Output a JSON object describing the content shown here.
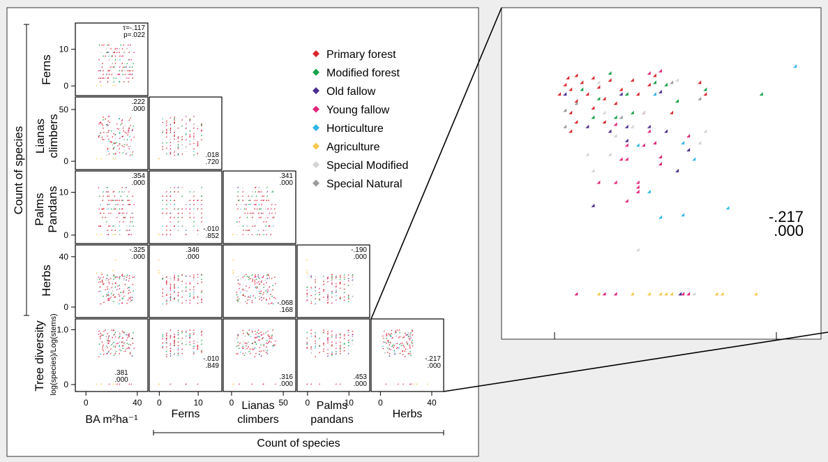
{
  "colors": {
    "Primary forest": "#d7262b",
    "Modified forest": "#16a046",
    "Old fallow": "#4b2e8f",
    "Young fallow": "#e0287a",
    "Horticulture": "#2fb6e8",
    "Agriculture": "#f6c84a",
    "Special Modified": "#d4d4d4",
    "Special Natural": "#9b9b9b"
  },
  "chart_data": {
    "type": "scatter",
    "subtype": "scatterplot matrix (lower triangle) with zoomed inset",
    "legend": [
      "Primary forest",
      "Modified forest",
      "Old fallow",
      "Young fallow",
      "Horticulture",
      "Agriculture",
      "Special Modified",
      "Special Natural"
    ],
    "variables": [
      {
        "key": "ba",
        "label": "BA m²ha⁻¹",
        "range": [
          0,
          45
        ],
        "ticks": [
          0,
          40
        ]
      },
      {
        "key": "ferns",
        "label": "Ferns",
        "range": [
          0,
          15
        ],
        "ticks": [
          0,
          10
        ]
      },
      {
        "key": "lianas",
        "label": "Lianas climbers",
        "range": [
          0,
          55
        ],
        "ticks": [
          0,
          50
        ]
      },
      {
        "key": "palms",
        "label": "Palms Pandans",
        "range": [
          0,
          14
        ],
        "ticks": [
          0,
          10
        ]
      },
      {
        "key": "herbs",
        "label": "Herbs",
        "range": [
          0,
          45
        ],
        "ticks": [
          0,
          40
        ]
      },
      {
        "key": "tree_div",
        "label": "Tree diversity",
        "label_sub": "log(species)/Log(stems)",
        "range": [
          0,
          1.1
        ],
        "ticks": [
          0,
          1.0
        ]
      }
    ],
    "tick_text": {
      "ferns": [
        "0",
        "10"
      ],
      "lianas": [
        "0",
        "50"
      ],
      "palms": [
        "0",
        "10"
      ],
      "herbs": [
        "0",
        "40"
      ],
      "tree_div": [
        "0",
        "1.0"
      ],
      "bottom": [
        "0",
        "40",
        "0",
        "10",
        "0",
        "50",
        "0",
        "10",
        "0",
        "40"
      ]
    },
    "correlations": [
      {
        "row": "ferns",
        "col": "ba",
        "text": [
          "τ=-.117",
          "p=.022"
        ],
        "corner": "top-right"
      },
      {
        "row": "lianas",
        "col": "ba",
        "text": [
          ".222",
          ".000"
        ],
        "corner": "top-right"
      },
      {
        "row": "lianas",
        "col": "ferns",
        "text": [
          ".018",
          ".720"
        ],
        "corner": "bottom-right"
      },
      {
        "row": "palms",
        "col": "ba",
        "text": [
          ".354",
          ".000"
        ],
        "corner": "top-right"
      },
      {
        "row": "palms",
        "col": "ferns",
        "text": [
          "-.010",
          ".852"
        ],
        "corner": "bottom-right"
      },
      {
        "row": "palms",
        "col": "lianas",
        "text": [
          ".341",
          ".000"
        ],
        "corner": "top-right"
      },
      {
        "row": "herbs",
        "col": "ba",
        "text": [
          "-.325",
          ".000"
        ],
        "corner": "top-right"
      },
      {
        "row": "herbs",
        "col": "ferns",
        "text": [
          ".346",
          ".000"
        ],
        "corner": "top-center"
      },
      {
        "row": "herbs",
        "col": "lianas",
        "text": [
          "-.068",
          ".168"
        ],
        "corner": "bottom-right"
      },
      {
        "row": "herbs",
        "col": "palms",
        "text": [
          "-.190",
          ".000"
        ],
        "corner": "top-right"
      },
      {
        "row": "tree_div",
        "col": "ba",
        "text": [
          ".381",
          ".000"
        ],
        "corner": "bottom-center"
      },
      {
        "row": "tree_div",
        "col": "ferns",
        "text": [
          "-.010",
          ".849"
        ],
        "corner": "mid-right"
      },
      {
        "row": "tree_div",
        "col": "lianas",
        "text": [
          ".316",
          ".000"
        ],
        "corner": "bottom-right"
      },
      {
        "row": "tree_div",
        "col": "palms",
        "text": [
          ".453",
          ".000"
        ],
        "corner": "bottom-right"
      },
      {
        "row": "tree_div",
        "col": "herbs",
        "text": [
          "-.217",
          ".000"
        ],
        "corner": "mid-right"
      }
    ],
    "group_axis_label_left": "Count of species",
    "group_axis_label_bottom": "Count of species",
    "bottom_labels": {
      "ba": "BA m²ha⁻¹",
      "ferns": "Ferns",
      "lianas": [
        "Lianas",
        "climbers"
      ],
      "palms": [
        "Palms",
        "pandans"
      ],
      "herbs": "Herbs"
    },
    "left_labels": {
      "ferns": "Ferns",
      "lianas": [
        "Lianas",
        "climbers"
      ],
      "palms": [
        "Palms",
        "Pandans"
      ],
      "herbs": "Herbs",
      "tree_div": [
        "Tree diversity",
        "log(species)/Log(stems)"
      ]
    },
    "inset": {
      "of": {
        "row": "tree_div",
        "col": "herbs"
      },
      "text": [
        "-.217",
        ".000"
      ],
      "points": [
        {
          "g": "Horticulture",
          "x": 45,
          "y": 1.0
        },
        {
          "g": "Primary forest",
          "x": 3,
          "y": 0.88
        },
        {
          "g": "Primary forest",
          "x": 4,
          "y": 0.92
        },
        {
          "g": "Primary forest",
          "x": 4.5,
          "y": 0.95
        },
        {
          "g": "Primary forest",
          "x": 5,
          "y": 0.9
        },
        {
          "g": "Primary forest",
          "x": 6,
          "y": 0.96
        },
        {
          "g": "Primary forest",
          "x": 7,
          "y": 0.93
        },
        {
          "g": "Primary forest",
          "x": 8,
          "y": 0.88
        },
        {
          "g": "Primary forest",
          "x": 9,
          "y": 0.95
        },
        {
          "g": "Primary forest",
          "x": 10,
          "y": 0.91
        },
        {
          "g": "Primary forest",
          "x": 11,
          "y": 0.86
        },
        {
          "g": "Primary forest",
          "x": 12,
          "y": 0.94
        },
        {
          "g": "Primary forest",
          "x": 14,
          "y": 0.9
        },
        {
          "g": "Primary forest",
          "x": 16,
          "y": 0.94
        },
        {
          "g": "Primary forest",
          "x": 17,
          "y": 0.88
        },
        {
          "g": "Primary forest",
          "x": 19,
          "y": 0.92
        },
        {
          "g": "Primary forest",
          "x": 20,
          "y": 0.96
        },
        {
          "g": "Primary forest",
          "x": 5,
          "y": 0.8
        },
        {
          "g": "Primary forest",
          "x": 6,
          "y": 0.76
        },
        {
          "g": "Primary forest",
          "x": 5,
          "y": 0.72
        },
        {
          "g": "Primary forest",
          "x": 9,
          "y": 0.82
        },
        {
          "g": "Primary forest",
          "x": 13,
          "y": 0.84
        },
        {
          "g": "Primary forest",
          "x": 18,
          "y": 0.8
        },
        {
          "g": "Primary forest",
          "x": 28,
          "y": 0.93
        },
        {
          "g": "Primary forest",
          "x": 29,
          "y": 0.88
        },
        {
          "g": "Primary forest",
          "x": 23,
          "y": 0.8
        },
        {
          "g": "Primary forest",
          "x": 11,
          "y": 0.76
        },
        {
          "g": "Primary forest",
          "x": 6,
          "y": 0.85
        },
        {
          "g": "Modified forest",
          "x": 7,
          "y": 0.9
        },
        {
          "g": "Modified forest",
          "x": 10,
          "y": 0.86
        },
        {
          "g": "Modified forest",
          "x": 12,
          "y": 0.97
        },
        {
          "g": "Modified forest",
          "x": 15,
          "y": 0.88
        },
        {
          "g": "Modified forest",
          "x": 20,
          "y": 0.93
        },
        {
          "g": "Modified forest",
          "x": 22,
          "y": 0.92
        },
        {
          "g": "Modified forest",
          "x": 24,
          "y": 0.85
        },
        {
          "g": "Modified forest",
          "x": 16,
          "y": 0.8
        },
        {
          "g": "Modified forest",
          "x": 13,
          "y": 0.78
        },
        {
          "g": "Modified forest",
          "x": 29,
          "y": 0.9
        },
        {
          "g": "Modified forest",
          "x": 39,
          "y": 0.88
        },
        {
          "g": "Modified forest",
          "x": 9,
          "y": 0.78
        },
        {
          "g": "Old fallow",
          "x": 4,
          "y": 0.88
        },
        {
          "g": "Old fallow",
          "x": 8,
          "y": 0.74
        },
        {
          "g": "Old fallow",
          "x": 12,
          "y": 0.72
        },
        {
          "g": "Old fallow",
          "x": 15,
          "y": 0.68
        },
        {
          "g": "Old fallow",
          "x": 15,
          "y": 0.74
        },
        {
          "g": "Old fallow",
          "x": 19,
          "y": 0.74
        },
        {
          "g": "Old fallow",
          "x": 21,
          "y": 0.89
        },
        {
          "g": "Old fallow",
          "x": 26,
          "y": 0.64
        },
        {
          "g": "Old fallow",
          "x": 24,
          "y": 0.55
        },
        {
          "g": "Old fallow",
          "x": 9,
          "y": 0.4
        },
        {
          "g": "Old fallow",
          "x": 22,
          "y": 0.72
        },
        {
          "g": "Old fallow",
          "x": 14,
          "y": 0.88
        },
        {
          "g": "Young fallow",
          "x": 21,
          "y": 0.98
        },
        {
          "g": "Young fallow",
          "x": 19,
          "y": 0.97
        },
        {
          "g": "Young fallow",
          "x": 13,
          "y": 0.75
        },
        {
          "g": "Young fallow",
          "x": 19,
          "y": 0.72
        },
        {
          "g": "Young fallow",
          "x": 20,
          "y": 0.67
        },
        {
          "g": "Young fallow",
          "x": 15,
          "y": 0.66
        },
        {
          "g": "Young fallow",
          "x": 18,
          "y": 0.66
        },
        {
          "g": "Young fallow",
          "x": 14,
          "y": 0.6
        },
        {
          "g": "Young fallow",
          "x": 15,
          "y": 0.6
        },
        {
          "g": "Young fallow",
          "x": 21,
          "y": 0.58
        },
        {
          "g": "Young fallow",
          "x": 21,
          "y": 0.61
        },
        {
          "g": "Young fallow",
          "x": 10,
          "y": 0.5
        },
        {
          "g": "Young fallow",
          "x": 13,
          "y": 0.5
        },
        {
          "g": "Young fallow",
          "x": 17,
          "y": 0.48
        },
        {
          "g": "Young fallow",
          "x": 17,
          "y": 0.5
        },
        {
          "g": "Young fallow",
          "x": 17,
          "y": 0.46
        },
        {
          "g": "Young fallow",
          "x": 15,
          "y": 0.42
        },
        {
          "g": "Young fallow",
          "x": 26,
          "y": 0.7
        },
        {
          "g": "Horticulture",
          "x": 17,
          "y": 0.66
        },
        {
          "g": "Horticulture",
          "x": 25,
          "y": 0.67
        },
        {
          "g": "Horticulture",
          "x": 27,
          "y": 0.6
        },
        {
          "g": "Horticulture",
          "x": 19,
          "y": 0.46
        },
        {
          "g": "Horticulture",
          "x": 21,
          "y": 0.35
        },
        {
          "g": "Horticulture",
          "x": 25,
          "y": 0.36
        },
        {
          "g": "Horticulture",
          "x": 33,
          "y": 0.39
        },
        {
          "g": "Horticulture",
          "x": 20,
          "y": 0.88
        },
        {
          "g": "Special Modified",
          "x": 11,
          "y": 0.8
        },
        {
          "g": "Special Modified",
          "x": 13,
          "y": 0.7
        },
        {
          "g": "Special Modified",
          "x": 8,
          "y": 0.62
        },
        {
          "g": "Special Modified",
          "x": 9,
          "y": 0.55
        },
        {
          "g": "Special Modified",
          "x": 12,
          "y": 0.62
        },
        {
          "g": "Special Modified",
          "x": 16,
          "y": 0.74
        },
        {
          "g": "Special Modified",
          "x": 18,
          "y": 0.8
        },
        {
          "g": "Special Modified",
          "x": 24,
          "y": 0.94
        },
        {
          "g": "Special Modified",
          "x": 29,
          "y": 0.72
        },
        {
          "g": "Special Modified",
          "x": 28,
          "y": 0.67
        },
        {
          "g": "Special Modified",
          "x": 17,
          "y": 0.21
        },
        {
          "g": "Special Modified",
          "x": 10,
          "y": 0.93
        },
        {
          "g": "Special Natural",
          "x": 4,
          "y": 0.81
        },
        {
          "g": "Special Natural",
          "x": 4,
          "y": 0.74
        },
        {
          "g": "Special Natural",
          "x": 6,
          "y": 0.84
        },
        {
          "g": "Special Natural",
          "x": 14,
          "y": 0.78
        },
        {
          "g": "Special Natural",
          "x": 23,
          "y": 0.93
        },
        {
          "g": "Special Natural",
          "x": 28,
          "y": 0.86
        },
        {
          "g": "Young fallow",
          "x": 6,
          "y": 0.02
        },
        {
          "g": "Young fallow",
          "x": 11,
          "y": 0.02
        },
        {
          "g": "Young fallow",
          "x": 13,
          "y": 0.02
        },
        {
          "g": "Young fallow",
          "x": 25,
          "y": 0.02
        },
        {
          "g": "Young fallow",
          "x": 26,
          "y": 0.02
        },
        {
          "g": "Agriculture",
          "x": 10,
          "y": 0.02
        },
        {
          "g": "Agriculture",
          "x": 16,
          "y": 0.02
        },
        {
          "g": "Agriculture",
          "x": 19,
          "y": 0.02
        },
        {
          "g": "Agriculture",
          "x": 21,
          "y": 0.02
        },
        {
          "g": "Agriculture",
          "x": 22,
          "y": 0.02
        },
        {
          "g": "Agriculture",
          "x": 23,
          "y": 0.02
        },
        {
          "g": "Agriculture",
          "x": 31,
          "y": 0.02
        },
        {
          "g": "Agriculture",
          "x": 32,
          "y": 0.02
        },
        {
          "g": "Agriculture",
          "x": 38,
          "y": 0.02
        },
        {
          "g": "Old fallow",
          "x": 24.5,
          "y": 0.02
        },
        {
          "g": "Special Modified",
          "x": 27,
          "y": 0.02
        }
      ]
    }
  }
}
